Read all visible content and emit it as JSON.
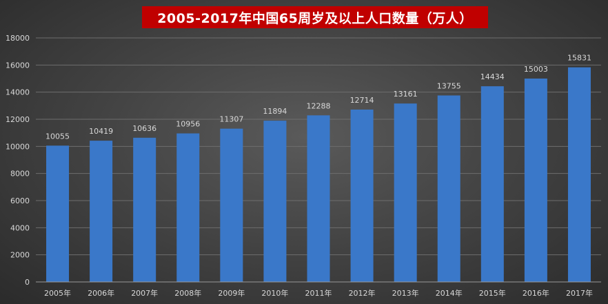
{
  "chart_data": {
    "type": "bar",
    "title": "2005-2017年中国65周岁及以上人口数量（万人）",
    "categories": [
      "2005年",
      "2006年",
      "2007年",
      "2008年",
      "2009年",
      "2010年",
      "2011年",
      "2012年",
      "2013年",
      "2014年",
      "2015年",
      "2016年",
      "2017年"
    ],
    "values": [
      10055,
      10419,
      10636,
      10956,
      11307,
      11894,
      12288,
      12714,
      13161,
      13755,
      14434,
      15003,
      15831
    ],
    "data_labels": [
      "10055",
      "10419",
      "10636",
      "10956",
      "11307",
      "11894",
      "12288",
      "12714",
      "13161",
      "13755",
      "14434",
      "15003",
      "15831"
    ],
    "y_ticks": [
      "0",
      "2000",
      "4000",
      "6000",
      "8000",
      "10000",
      "12000",
      "14000",
      "16000",
      "18000"
    ],
    "ylim": [
      0,
      18000
    ],
    "xlabel": "",
    "ylabel": "",
    "grid": true,
    "legend": "none",
    "colors": {
      "bar": "#3a78c9",
      "title_background": "#c00000",
      "title_text": "#ffffff",
      "text": "#d9d9d9",
      "gridline": "#6e6e6e"
    }
  }
}
